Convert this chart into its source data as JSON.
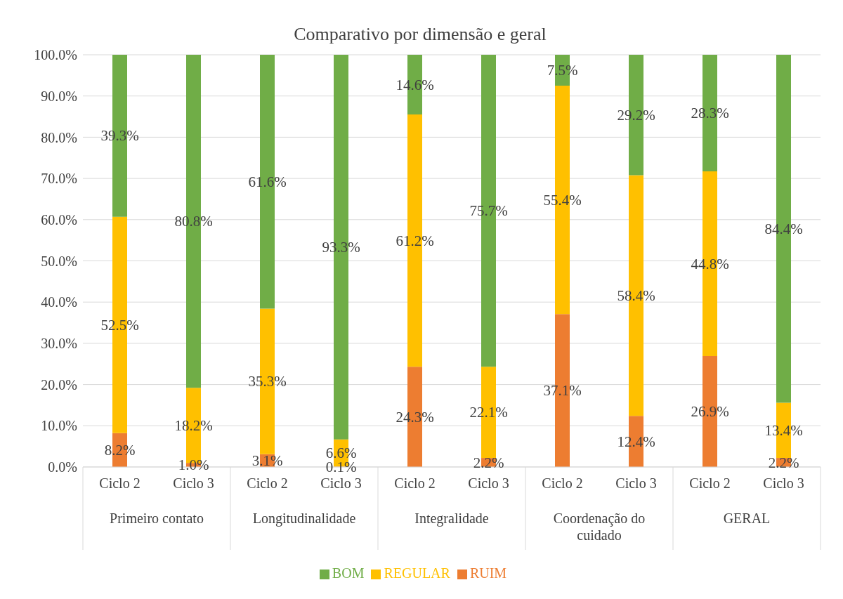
{
  "chart_data": {
    "type": "bar",
    "title": "Comparativo por dimensão e geral",
    "stacked": true,
    "categories": [
      "Ciclo 2",
      "Ciclo 3",
      "Ciclo 2",
      "Ciclo 3",
      "Ciclo 2",
      "Ciclo 3",
      "Ciclo 2",
      "Ciclo 3",
      "Ciclo 2",
      "Ciclo 3"
    ],
    "annotations": [
      "Primeiro contato",
      "Longitudinalidade",
      "Integralidade",
      "Coordenação do cuidado",
      "GERAL"
    ],
    "series": [
      {
        "name": "RUIM",
        "color": "#ed7d31",
        "values": [
          8.2,
          1.0,
          3.1,
          0.1,
          24.3,
          2.2,
          37.1,
          12.4,
          26.9,
          2.2
        ],
        "value_labels": [
          "8.2%",
          "1.0%",
          "3.1%",
          "0.1%",
          "24.3%",
          "2.2%",
          "37.1%",
          "12.4%",
          "26.9%",
          "2.2%"
        ]
      },
      {
        "name": "REGULAR",
        "color": "#ffc000",
        "values": [
          52.5,
          18.2,
          35.3,
          6.6,
          61.2,
          22.1,
          55.4,
          58.4,
          44.8,
          13.4
        ],
        "value_labels": [
          "52.5%",
          "18.2%",
          "35.3%",
          "6.6%",
          "61.2%",
          "22.1%",
          "55.4%",
          "58.4%",
          "44.8%",
          "13.4%"
        ]
      },
      {
        "name": "BOM",
        "color": "#70ad47",
        "values": [
          39.3,
          80.8,
          61.6,
          93.3,
          14.6,
          75.7,
          7.5,
          29.2,
          28.3,
          84.4
        ],
        "value_labels": [
          "39.3%",
          "80.8%",
          "61.6%",
          "93.3%",
          "14.6%",
          "75.7%",
          "7.5%",
          "29.2%",
          "28.3%",
          "84.4%"
        ]
      }
    ],
    "ylim": [
      0,
      100
    ],
    "yticks": [
      {
        "value": 0,
        "label": "0.0%"
      },
      {
        "value": 10,
        "label": "10.0%"
      },
      {
        "value": 20,
        "label": "20.0%"
      },
      {
        "value": 30,
        "label": "30.0%"
      },
      {
        "value": 40,
        "label": "40.0%"
      },
      {
        "value": 50,
        "label": "50.0%"
      },
      {
        "value": 60,
        "label": "60.0%"
      },
      {
        "value": 70,
        "label": "70.0%"
      },
      {
        "value": 80,
        "label": "80.0%"
      },
      {
        "value": 90,
        "label": "90.0%"
      },
      {
        "value": 100,
        "label": "100.0%"
      }
    ],
    "grid": "y",
    "legend": "bottom"
  }
}
